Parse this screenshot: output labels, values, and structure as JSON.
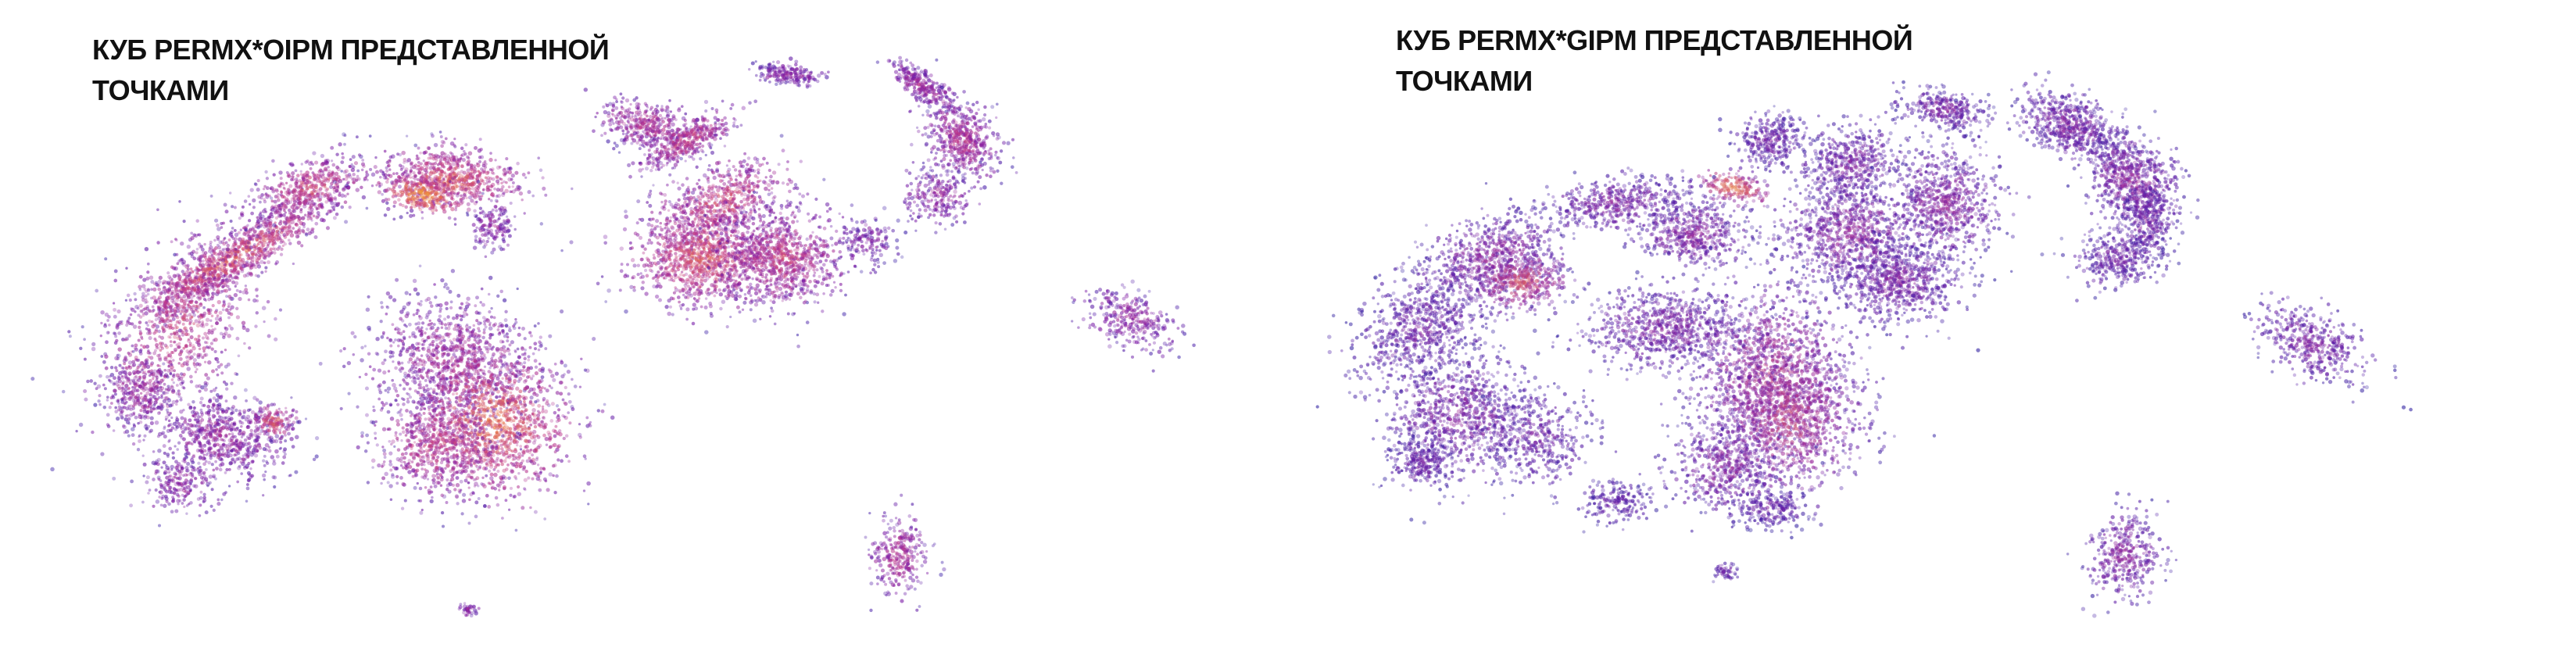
{
  "figure": {
    "panels": [
      {
        "title_line1": "КУБ PERMX*OIPM ПРЕДСТАВЛЕННОЙ",
        "title_line2": "ТОЧКАМИ"
      },
      {
        "title_line1": "КУБ PERMX*GIPM ПРЕДСТАВЛЕННОЙ",
        "title_line2": "ТОЧКАМИ"
      }
    ]
  },
  "chart_data": [
    {
      "type": "scatter",
      "title": "КУБ PERMX*OIPM ПРЕДСТАВЛЕННОЙ ТОЧКАМИ",
      "colormap": [
        "#3b1fa8",
        "#7a1aa6",
        "#c23a8a",
        "#e8743e",
        "#f6c23a"
      ],
      "axes_visible": false,
      "grid": false,
      "legend": "none"
    },
    {
      "type": "scatter",
      "title": "КУБ PERMX*GIPM ПРЕДСТАВЛЕННОЙ ТОЧКАМИ",
      "colormap": [
        "#2b1a9e",
        "#5a1ca8",
        "#9c2a9c",
        "#d4556a",
        "#f0a040"
      ],
      "axes_visible": false,
      "grid": false,
      "legend": "none"
    }
  ]
}
